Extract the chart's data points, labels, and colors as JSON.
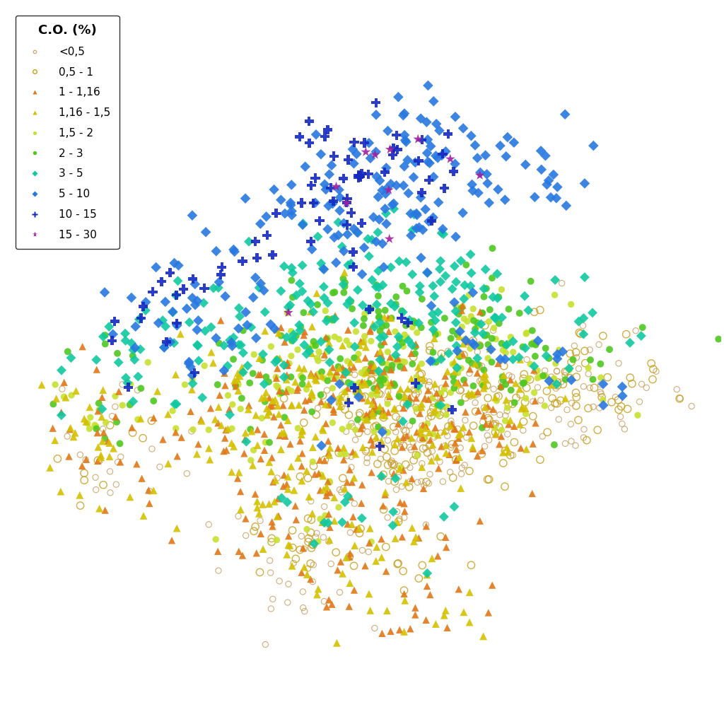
{
  "legend_title": "C.O. (%)",
  "categories": [
    {
      "label": "<0,5",
      "marker": "o",
      "color": "#ffffff",
      "edgecolor": "#c8a060",
      "size": 35,
      "filled": false,
      "lw": 0.8
    },
    {
      "label": "0,5 - 1",
      "marker": "o",
      "color": "#ffffff",
      "edgecolor": "#c8a020",
      "size": 55,
      "filled": false,
      "lw": 1.0
    },
    {
      "label": "1 - 1,16",
      "marker": "^",
      "color": "#e07818",
      "edgecolor": "#e07818",
      "size": 55,
      "filled": true
    },
    {
      "label": "1,16 - 1,5",
      "marker": "^",
      "color": "#d4c000",
      "edgecolor": "#d4c000",
      "size": 60,
      "filled": true
    },
    {
      "label": "1,5 - 2",
      "marker": "o",
      "color": "#c8e030",
      "edgecolor": "#c8e030",
      "size": 45,
      "filled": true
    },
    {
      "label": "2 - 3",
      "marker": "o",
      "color": "#50c820",
      "edgecolor": "#50c820",
      "size": 50,
      "filled": true
    },
    {
      "label": "3 - 5",
      "marker": "D",
      "color": "#10c8a0",
      "edgecolor": "#10c8a0",
      "size": 50,
      "filled": true
    },
    {
      "label": "5 - 10",
      "marker": "D",
      "color": "#2878e0",
      "edgecolor": "#2878e0",
      "size": 55,
      "filled": true
    },
    {
      "label": "10 - 15",
      "marker": "P",
      "color": "#1428c0",
      "edgecolor": "#1428c0",
      "size": 90,
      "filled": true
    },
    {
      "label": "15 - 30",
      "marker": "*",
      "color": "#a020a0",
      "edgecolor": "#a020a0",
      "size": 110,
      "filled": true
    }
  ],
  "seed": 42,
  "background_color": "#ffffff",
  "figsize": [
    10.24,
    10.24
  ],
  "dpi": 100
}
